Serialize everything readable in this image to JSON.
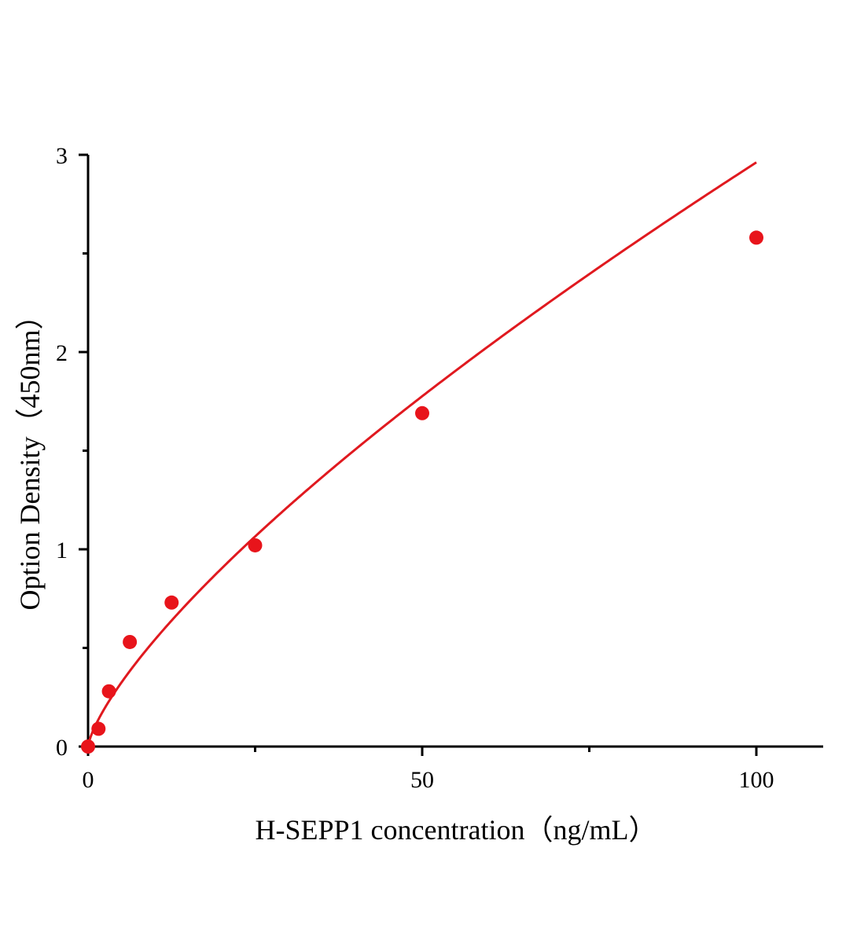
{
  "chart_data": {
    "type": "scatter",
    "title": "",
    "xlabel": "H-SEPP1 concentration（ng/mL）",
    "ylabel": "Option Density（450nm）",
    "xlim": [
      0,
      110
    ],
    "ylim": [
      0,
      3
    ],
    "x_ticks": [
      0,
      50,
      100
    ],
    "x_tick_labels": [
      "0",
      "50",
      "100"
    ],
    "x_minor_ticks": [
      25,
      75
    ],
    "y_ticks": [
      0,
      1,
      2,
      3
    ],
    "y_tick_labels": [
      "0",
      "1",
      "2",
      "3"
    ],
    "y_minor_ticks": [
      0.5,
      1.5,
      2.5
    ],
    "grid": false,
    "legend": "none",
    "series": [
      {
        "x": [
          0,
          1.5625,
          3.125,
          6.25,
          12.5,
          25,
          50,
          100
        ],
        "y": [
          0.0,
          0.09,
          0.28,
          0.53,
          0.73,
          1.02,
          1.69,
          2.58
        ],
        "marker": "circle",
        "color": "#e8141b",
        "fit_line": true,
        "fit_color": "#e0191f"
      }
    ]
  }
}
